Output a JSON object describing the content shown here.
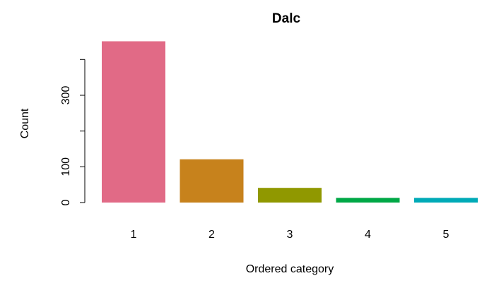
{
  "chart_data": {
    "type": "bar",
    "title": "Dalc",
    "xlabel": "Ordered category",
    "ylabel": "Count",
    "categories": [
      "1",
      "2",
      "3",
      "4",
      "5"
    ],
    "values": [
      451,
      121,
      41,
      13,
      13
    ],
    "colors": [
      "#E16A86",
      "#C7821C",
      "#909800",
      "#00A846",
      "#00AAB7"
    ],
    "y_ticks": [
      0,
      100,
      300
    ],
    "y_tick_labels": [
      "0",
      "100",
      "300"
    ],
    "y_minor_ticks": [
      200,
      400
    ],
    "ylim": [
      0,
      451
    ],
    "grid": false,
    "legend": "none"
  }
}
